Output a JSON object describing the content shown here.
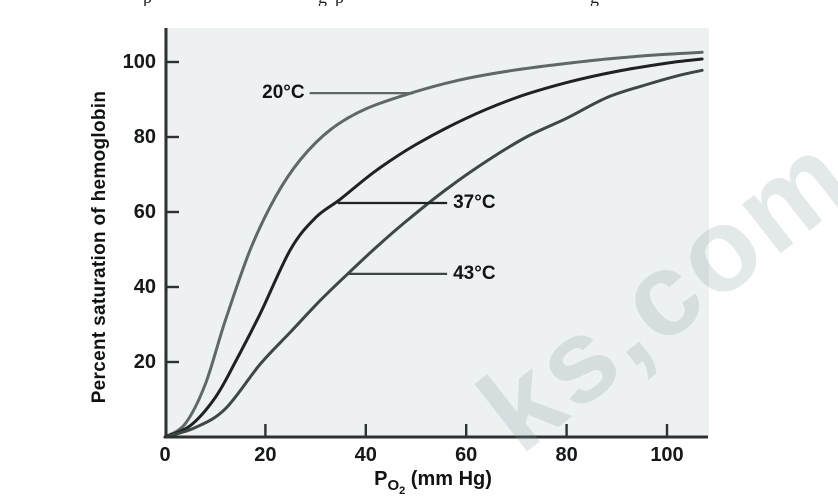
{
  "figure": {
    "top_cropped_fragments": [
      {
        "glyph": "p",
        "x": 143
      },
      {
        "glyph": "g",
        "x": 318
      },
      {
        "glyph": "p",
        "x": 335
      },
      {
        "glyph": "g",
        "x": 590
      }
    ],
    "watermark": {
      "text": "ks,com"
    }
  },
  "chart_data": {
    "type": "line",
    "title": "",
    "ylabel": "Percent saturation of hemoglobin",
    "xlabel": {
      "prefix": "P",
      "sub": "O",
      "subsub": "2",
      "suffix": " (mm Hg)"
    },
    "x_ticks": [
      0,
      20,
      40,
      60,
      80,
      100
    ],
    "y_ticks": [
      20,
      40,
      60,
      80,
      100
    ],
    "xlim": [
      0,
      108
    ],
    "ylim": [
      0,
      110
    ],
    "grid": false,
    "legend": "inline-annotations",
    "plot_background": "#eef1f1",
    "axis_color": "#2c3132",
    "series": [
      {
        "name": "20°C",
        "color": "#5f6767",
        "points": [
          [
            0,
            0
          ],
          [
            4,
            3.5
          ],
          [
            8,
            14
          ],
          [
            12,
            31
          ],
          [
            17,
            50
          ],
          [
            22,
            64
          ],
          [
            27,
            74
          ],
          [
            33,
            82
          ],
          [
            40,
            87.5
          ],
          [
            49,
            91.7
          ],
          [
            58,
            95
          ],
          [
            68,
            97.5
          ],
          [
            78,
            99.3
          ],
          [
            88,
            100.8
          ],
          [
            98,
            101.9
          ],
          [
            107,
            102.6
          ]
        ],
        "annotation": {
          "label": "20°C",
          "attach_x": 49.4,
          "attach_sat": 91.7,
          "label_x": 28.8,
          "side": "left"
        }
      },
      {
        "name": "37°C",
        "color": "#1e2222",
        "points": [
          [
            0,
            0
          ],
          [
            5,
            3
          ],
          [
            10,
            10.5
          ],
          [
            14,
            20
          ],
          [
            19,
            33
          ],
          [
            25,
            50
          ],
          [
            30,
            58.5
          ],
          [
            35,
            63.5
          ],
          [
            42,
            71
          ],
          [
            50,
            78
          ],
          [
            60,
            85
          ],
          [
            70,
            90.5
          ],
          [
            80,
            94.5
          ],
          [
            90,
            97.5
          ],
          [
            100,
            99.7
          ],
          [
            107,
            100.8
          ]
        ],
        "annotation": {
          "label": "37°C",
          "attach_x": 34.4,
          "attach_sat": 62.4,
          "label_x": 56.2,
          "side": "right"
        }
      },
      {
        "name": "43°C",
        "color": "#3f4647",
        "points": [
          [
            0,
            0
          ],
          [
            6,
            2.5
          ],
          [
            12,
            7.5
          ],
          [
            19,
            19.5
          ],
          [
            25,
            28
          ],
          [
            31,
            36.5
          ],
          [
            36,
            43
          ],
          [
            42,
            50.5
          ],
          [
            48,
            57.5
          ],
          [
            56,
            66
          ],
          [
            64,
            73.5
          ],
          [
            72,
            80
          ],
          [
            80,
            85
          ],
          [
            88,
            90.5
          ],
          [
            96,
            94
          ],
          [
            102,
            96.3
          ],
          [
            107,
            97.8
          ]
        ],
        "annotation": {
          "label": "43°C",
          "attach_x": 36.5,
          "attach_sat": 43.5,
          "label_x": 56.2,
          "side": "right"
        }
      }
    ]
  }
}
